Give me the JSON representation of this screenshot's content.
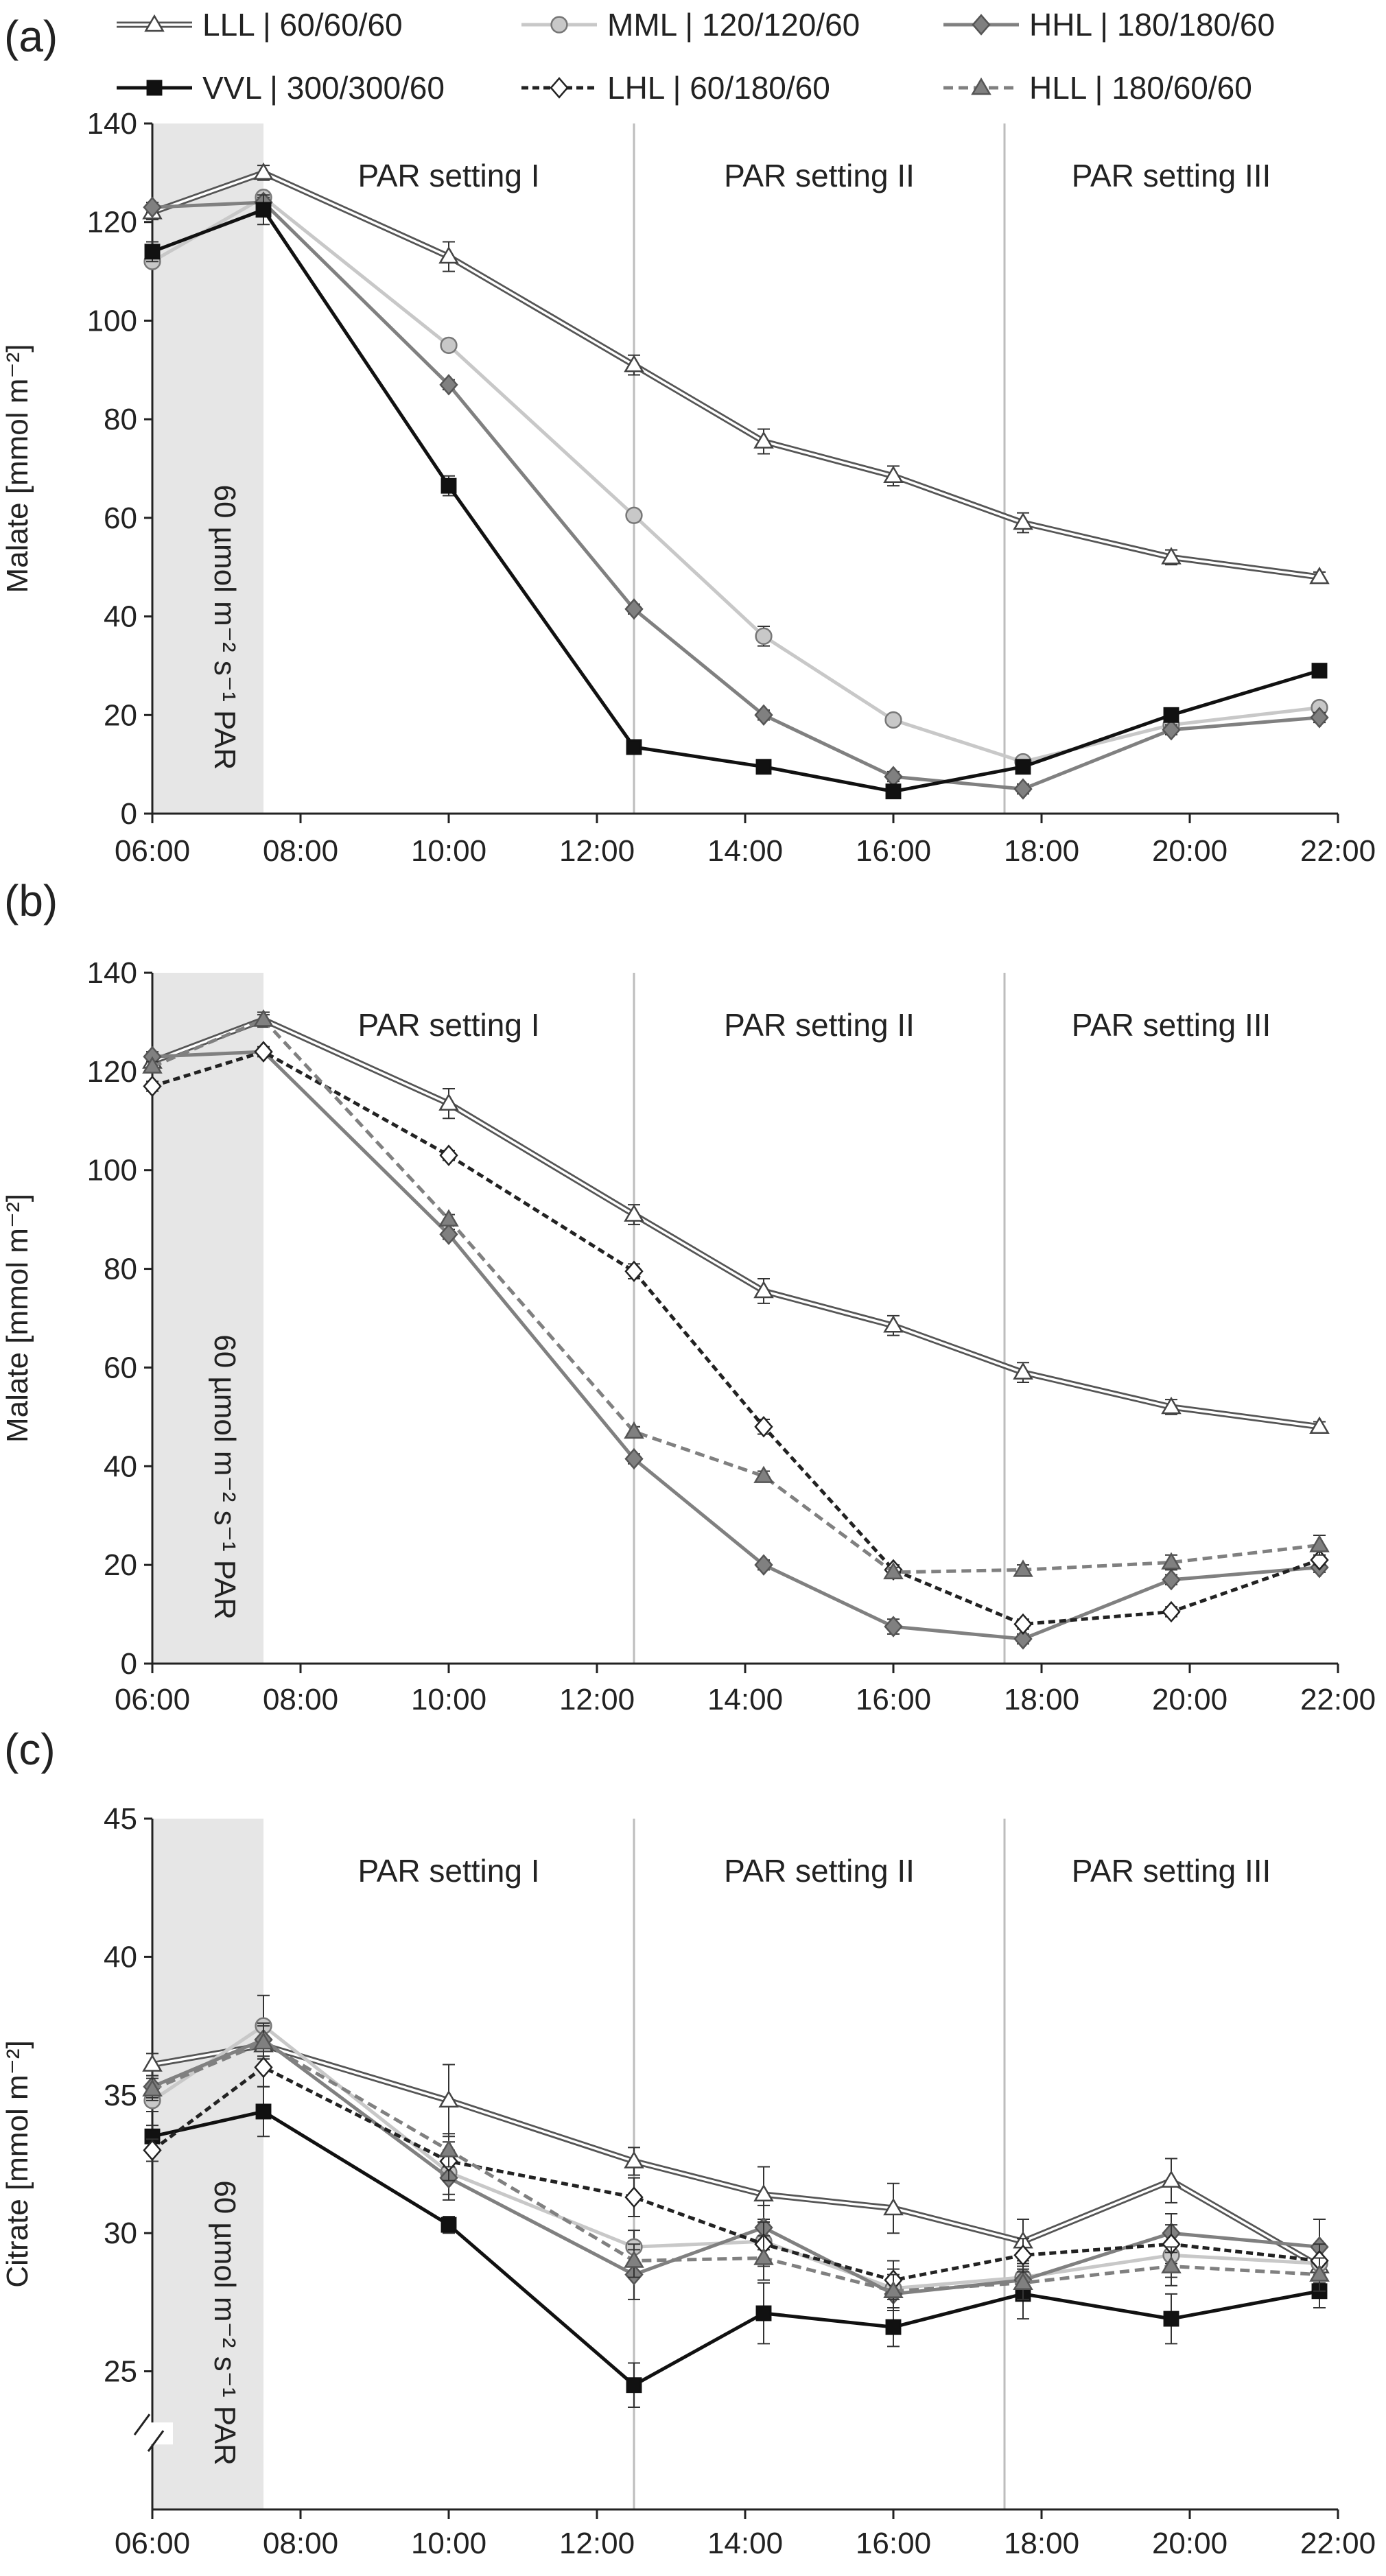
{
  "legend": [
    {
      "key": "LLL",
      "label": "LLL | 60/60/60",
      "line": "#555555",
      "dash": "",
      "double": true,
      "marker": "triangle",
      "fill": "#ffffff",
      "stroke": "#444444"
    },
    {
      "key": "MML",
      "label": "MML | 120/120/60",
      "line": "#c8c8c8",
      "dash": "",
      "double": false,
      "marker": "circle",
      "fill": "#c8c8c8",
      "stroke": "#777777"
    },
    {
      "key": "HHL",
      "label": "HHL | 180/180/60",
      "line": "#808080",
      "dash": "",
      "double": false,
      "marker": "diamond",
      "fill": "#808080",
      "stroke": "#555555"
    },
    {
      "key": "VVL",
      "label": "VVL | 300/300/60",
      "line": "#111111",
      "dash": "",
      "double": false,
      "marker": "square",
      "fill": "#111111",
      "stroke": "#111111"
    },
    {
      "key": "LHL",
      "label": "LHL | 60/180/60",
      "line": "#222222",
      "dash": "10,6",
      "double": false,
      "marker": "diamond",
      "fill": "#ffffff",
      "stroke": "#222222"
    },
    {
      "key": "HLL",
      "label": "HLL | 180/60/60",
      "line": "#808080",
      "dash": "14,8",
      "double": false,
      "marker": "triangle",
      "fill": "#808080",
      "stroke": "#555555"
    }
  ],
  "band_text": "60 µmol m⁻² s⁻¹ PAR",
  "settings": [
    "PAR setting I",
    "PAR setting II",
    "PAR setting III"
  ],
  "chart_data": [
    {
      "panel": "(a)",
      "type": "line",
      "ylabel": "Malate [mmol m⁻²]",
      "ylim": [
        0,
        140
      ],
      "yticks": [
        0,
        20,
        40,
        60,
        80,
        100,
        120,
        140
      ],
      "xlim": [
        "06:00",
        "22:00"
      ],
      "xticks": [
        "06:00",
        "08:00",
        "10:00",
        "12:00",
        "14:00",
        "16:00",
        "18:00",
        "20:00",
        "22:00"
      ],
      "shaded_band": [
        "06:00",
        "07:30"
      ],
      "setting_dividers": [
        "12:30",
        "17:30"
      ],
      "x": [
        "06:00",
        "07:30",
        "10:00",
        "12:30",
        "14:15",
        "16:00",
        "17:45",
        "19:45",
        "21:45"
      ],
      "series": [
        {
          "key": "LLL",
          "values": [
            122,
            130,
            113,
            91,
            75.5,
            68.5,
            59,
            52,
            48
          ],
          "errors": [
            1.5,
            1.5,
            3,
            2,
            2.5,
            2,
            2,
            1.5,
            1
          ]
        },
        {
          "key": "MML",
          "values": [
            112,
            125,
            95,
            60.5,
            36,
            19,
            10.5,
            18,
            21.5
          ],
          "errors": [
            1,
            1,
            1,
            1,
            2,
            1,
            1,
            1,
            1
          ]
        },
        {
          "key": "HHL",
          "values": [
            123,
            124,
            87,
            41.5,
            20,
            7.5,
            5,
            17,
            19.5
          ],
          "errors": [
            1,
            1,
            1,
            1,
            1,
            1,
            1,
            1,
            1
          ]
        },
        {
          "key": "VVL",
          "values": [
            114,
            122.5,
            66.5,
            13.5,
            9.5,
            4.5,
            9.5,
            20,
            29
          ],
          "errors": [
            2,
            3,
            2,
            1,
            1,
            1,
            1,
            1,
            1
          ]
        }
      ]
    },
    {
      "panel": "(b)",
      "type": "line",
      "ylabel": "Malate [mmol m⁻²]",
      "ylim": [
        0,
        140
      ],
      "yticks": [
        0,
        20,
        40,
        60,
        80,
        100,
        120,
        140
      ],
      "xlim": [
        "06:00",
        "22:00"
      ],
      "xticks": [
        "06:00",
        "08:00",
        "10:00",
        "12:00",
        "14:00",
        "16:00",
        "18:00",
        "20:00",
        "22:00"
      ],
      "shaded_band": [
        "06:00",
        "07:30"
      ],
      "setting_dividers": [
        "12:30",
        "17:30"
      ],
      "x": [
        "06:00",
        "07:30",
        "10:00",
        "12:30",
        "14:15",
        "16:00",
        "17:45",
        "19:45",
        "21:45"
      ],
      "series": [
        {
          "key": "LLL",
          "values": [
            122,
            130.5,
            113.5,
            91,
            75.5,
            68.5,
            59,
            52,
            48
          ],
          "errors": [
            1.5,
            1.5,
            3,
            2,
            2.5,
            2,
            2,
            1.5,
            1
          ]
        },
        {
          "key": "HHL",
          "values": [
            123,
            124,
            87,
            41.5,
            20,
            7.5,
            5,
            17,
            19.5
          ],
          "errors": [
            1,
            1,
            1,
            1,
            1,
            1.5,
            1,
            1,
            1
          ]
        },
        {
          "key": "LHL",
          "values": [
            117,
            124,
            103,
            79.5,
            48,
            19,
            8,
            10.5,
            21
          ],
          "errors": [
            1,
            1,
            1,
            1.5,
            1.5,
            1,
            1,
            1,
            1
          ]
        },
        {
          "key": "HLL",
          "values": [
            121,
            130.5,
            90,
            47,
            38,
            18.5,
            19,
            20.5,
            24
          ],
          "errors": [
            1,
            1,
            1,
            1,
            1,
            1,
            1,
            1.5,
            2
          ]
        }
      ]
    },
    {
      "panel": "(c)",
      "type": "line",
      "ylabel": "Citrate [mmol m⁻²]",
      "ylim": [
        20,
        45
      ],
      "yticks": [
        25,
        30,
        35,
        40,
        45
      ],
      "axis_break": true,
      "xlim": [
        "06:00",
        "22:00"
      ],
      "xticks": [
        "06:00",
        "08:00",
        "10:00",
        "12:00",
        "14:00",
        "16:00",
        "18:00",
        "20:00",
        "22:00"
      ],
      "shaded_band": [
        "06:00",
        "07:30"
      ],
      "setting_dividers": [
        "12:30",
        "17:30"
      ],
      "x": [
        "06:00",
        "07:30",
        "10:00",
        "12:30",
        "14:15",
        "16:00",
        "17:45",
        "19:45",
        "21:45"
      ],
      "series": [
        {
          "key": "LLL",
          "values": [
            36.1,
            36.8,
            34.8,
            32.6,
            31.4,
            30.9,
            29.7,
            31.9,
            28.8
          ],
          "errors": [
            0.4,
            0.5,
            1.3,
            0.5,
            1.0,
            0.9,
            0.8,
            0.8,
            0.6
          ]
        },
        {
          "key": "MML",
          "values": [
            34.8,
            37.5,
            32.2,
            29.5,
            29.7,
            28.0,
            28.4,
            29.2,
            28.9
          ],
          "errors": [
            0.4,
            1.1,
            0.8,
            0.6,
            0.8,
            0.7,
            0.6,
            0.8,
            0.6
          ]
        },
        {
          "key": "HHL",
          "values": [
            35.3,
            37.0,
            32.0,
            28.5,
            30.2,
            27.8,
            28.3,
            30.0,
            29.5
          ],
          "errors": [
            0.4,
            0.6,
            0.8,
            0.9,
            0.8,
            0.6,
            0.6,
            0.7,
            1.0
          ]
        },
        {
          "key": "VVL",
          "values": [
            33.5,
            34.4,
            30.3,
            24.5,
            27.1,
            26.6,
            27.8,
            26.9,
            27.9
          ],
          "errors": [
            0.4,
            0.9,
            0.3,
            0.8,
            1.1,
            0.7,
            0.9,
            0.9,
            0.6
          ]
        },
        {
          "key": "LHL",
          "values": [
            33.0,
            36.0,
            32.6,
            31.3,
            29.6,
            28.3,
            29.2,
            29.6,
            29.0
          ],
          "errors": [
            0.4,
            0.7,
            0.7,
            0.7,
            0.8,
            0.7,
            0.6,
            0.7,
            0.6
          ]
        },
        {
          "key": "HLL",
          "values": [
            35.2,
            36.9,
            33.0,
            29.0,
            29.1,
            27.9,
            28.2,
            28.8,
            28.5
          ],
          "errors": [
            0.4,
            0.6,
            0.6,
            0.6,
            0.8,
            0.6,
            0.6,
            0.7,
            0.6
          ]
        }
      ]
    }
  ]
}
